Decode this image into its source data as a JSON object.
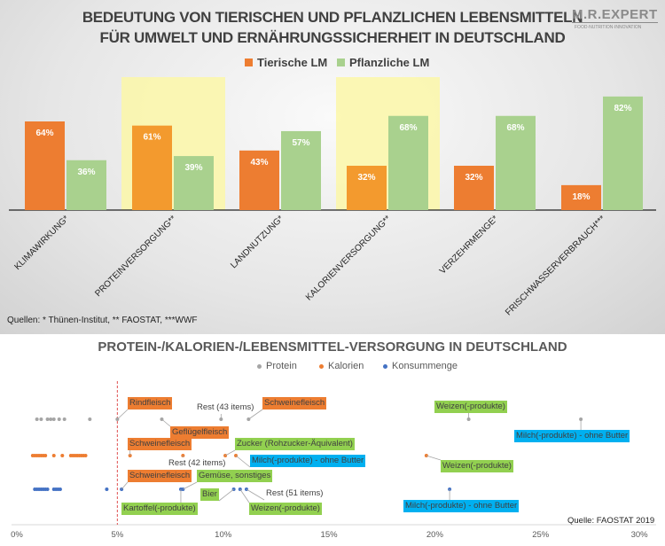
{
  "chart_data": [
    {
      "type": "bar",
      "title": "BEDEUTUNG VON TIERISCHEN UND PFLANZLICHEN LEBENSMITTELN FÜR UMWELT UND ERNÄHRUNGSSICHERHEIT IN DEUTSCHLAND",
      "title_line1": "BEDEUTUNG VON TIERISCHEN UND PFLANZLICHEN LEBENSMITTELN",
      "title_line2": "FÜR UMWELT UND ERNÄHRUNGSSICHERHEIT IN DEUTSCHLAND",
      "categories": [
        "KLIMAWIRKUNG*",
        "PROTEINVERSORGUNG**",
        "LANDNUTZUNG*",
        "KALORIENVERSORGUNG**",
        "VERZEHRMENGE*",
        "FRISCHWASSERVERBRAUCH***"
      ],
      "highlighted_categories": [
        "PROTEINVERSORGUNG**",
        "KALORIENVERSORGUNG**"
      ],
      "series": [
        {
          "name": "Tierische LM",
          "color": "#ed7d31",
          "values": [
            64,
            61,
            43,
            32,
            32,
            18
          ],
          "labels": [
            "64%",
            "61%",
            "43%",
            "32%",
            "32%",
            "18%"
          ]
        },
        {
          "name": "Pflanzliche LM",
          "color": "#a9d18e",
          "values": [
            36,
            39,
            57,
            68,
            68,
            82
          ],
          "labels": [
            "36%",
            "39%",
            "57%",
            "68%",
            "68%",
            "82%"
          ]
        }
      ],
      "ylim": [
        0,
        100
      ],
      "legend": "top",
      "sources": "Quellen: * Thünen-Institut, ** FAOSTAT, ***WWF"
    },
    {
      "type": "scatter",
      "title": "PROTEIN-/KALORIEN-/LEBENSMITTEL-VERSORGUNG IN DEUTSCHLAND",
      "xlim": [
        0,
        30
      ],
      "xticks": [
        "0%",
        "5%",
        "10%",
        "15%",
        "20%",
        "25%",
        "30%"
      ],
      "reference_line_x": 5,
      "legend": "top",
      "source": "Quelle: FAOSTAT 2019",
      "series": [
        {
          "name": "Protein",
          "color": "#a5a5a5",
          "x": [
            1.2,
            1.4,
            1.7,
            1.85,
            2.0,
            2.25,
            2.5,
            3.7,
            5.0,
            7.1,
            9.9,
            11.2,
            21.6,
            26.9
          ]
        },
        {
          "name": "Kalorien",
          "color": "#ed7d31",
          "x": [
            1.0,
            1.1,
            1.2,
            1.3,
            1.4,
            1.5,
            1.6,
            2.0,
            2.4,
            2.8,
            2.9,
            3.0,
            3.1,
            3.2,
            3.3,
            3.4,
            3.5,
            5.6,
            8.1,
            10.1,
            10.6,
            19.6
          ]
        },
        {
          "name": "Konsummenge",
          "color": "#4472c4",
          "x": [
            1.1,
            1.2,
            1.3,
            1.4,
            1.5,
            1.6,
            1.7,
            2.0,
            2.1,
            2.2,
            2.3,
            4.5,
            5.2,
            8.0,
            8.1,
            10.5,
            10.8,
            11.1,
            20.7
          ]
        }
      ],
      "annotations": [
        {
          "text": "Rindfleisch",
          "series": "Protein",
          "x": 5.0,
          "color": "#ed7d31"
        },
        {
          "text": "Rest (43 items)",
          "series": "Protein",
          "x": 9.9,
          "color": ""
        },
        {
          "text": "Schweinefleisch",
          "series": "Protein",
          "x": 11.2,
          "color": "#ed7d31"
        },
        {
          "text": "Geflügelfleisch",
          "series": "Protein",
          "x": 7.1,
          "color": "#ed7d31"
        },
        {
          "text": "Weizen(-produkte)",
          "series": "Protein",
          "x": 21.6,
          "color": "#92d050"
        },
        {
          "text": "Milch(-produkte) - ohne Butter",
          "series": "Protein",
          "x": 26.9,
          "color": "#00b0f0"
        },
        {
          "text": "Schweinefleisch",
          "series": "Kalorien",
          "x": 5.6,
          "color": "#ed7d31"
        },
        {
          "text": "Zucker (Rohzucker-Äquivalent)",
          "series": "Kalorien",
          "x": 10.1,
          "color": "#92d050"
        },
        {
          "text": "Milch(-produkte) - ohne Butter",
          "series": "Kalorien",
          "x": 10.6,
          "color": "#00b0f0"
        },
        {
          "text": "Rest (42 items)",
          "series": "Kalorien",
          "x": 8.1,
          "color": ""
        },
        {
          "text": "Weizen(-produkte)",
          "series": "Kalorien",
          "x": 19.6,
          "color": "#92d050"
        },
        {
          "text": "Schweinefleisch",
          "series": "Konsummenge",
          "x": 5.2,
          "color": "#ed7d31"
        },
        {
          "text": "Gemüse, sonstiges",
          "series": "Konsummenge",
          "x": 8.1,
          "color": "#92d050"
        },
        {
          "text": "Bier",
          "series": "Konsummenge",
          "x": 10.5,
          "color": "#92d050"
        },
        {
          "text": "Rest (51 items)",
          "series": "Konsummenge",
          "x": 11.1,
          "color": ""
        },
        {
          "text": "Kartoffel(-produkte)",
          "series": "Konsummenge",
          "x": 8.0,
          "color": "#92d050"
        },
        {
          "text": "Weizen(-produkte)",
          "series": "Konsummenge",
          "x": 10.8,
          "color": "#92d050"
        },
        {
          "text": "Milch(-produkte) - ohne Butter",
          "series": "Konsummenge",
          "x": 20.7,
          "color": "#00b0f0"
        }
      ]
    }
  ],
  "logo": {
    "text": "M.R.EXPERT",
    "tagline": "FOOD·NUTRITION·INNOVATION"
  }
}
